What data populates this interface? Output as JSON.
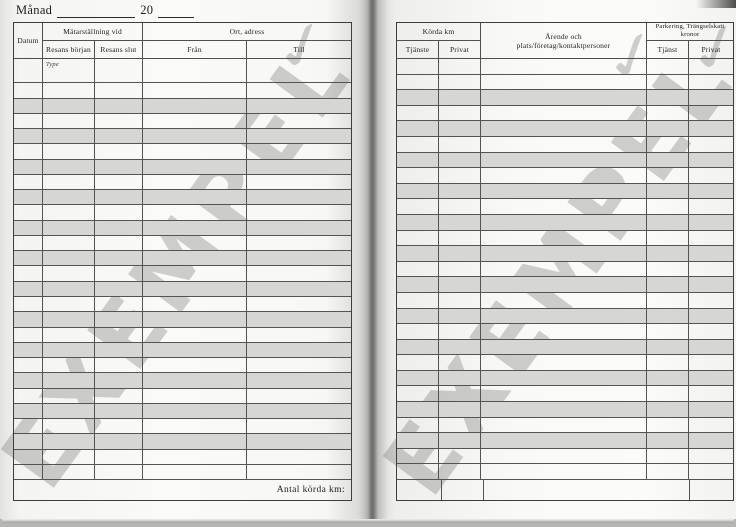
{
  "page_header": {
    "month_label": "Månad",
    "year_prefix": "20"
  },
  "watermark": {
    "text": "EXEMPEL",
    "fragment_glyph": "✓"
  },
  "left_table": {
    "header_groups": {
      "meter_reading": "Mätarställning vid",
      "location": "Ort, adress"
    },
    "columns": {
      "date": "Datum",
      "trip_start": "Resans början",
      "trip_end": "Resans slut",
      "from": "Från",
      "to": "Till"
    },
    "first_row_note": "Type",
    "row_count": 27,
    "footer_label": "Antal körda km:"
  },
  "right_table": {
    "header_groups": {
      "driven_km": "Körda km",
      "errand_line1": "Ärende och",
      "errand_line2": "plats/företag/kontaktpersoner",
      "parking_line1": "Parkering, Trängselskatt",
      "parking_line2": "kronor"
    },
    "columns": {
      "business_km": "Tjänste",
      "private_km": "Privat",
      "business_parking": "Tjänst",
      "private_parking": "Privat"
    },
    "row_count": 27
  },
  "colors": {
    "row_shade": "#d6d6d4",
    "grid_line": "#55554f",
    "watermark_gray": "#767674",
    "page_white": "#fafaf8"
  }
}
